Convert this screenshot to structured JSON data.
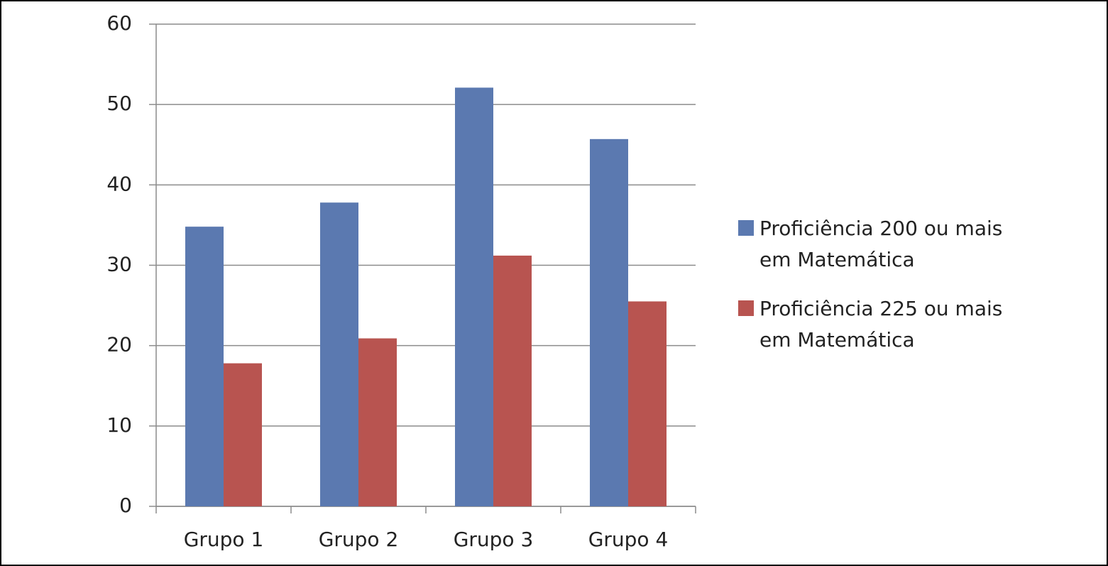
{
  "chart_data": {
    "type": "bar",
    "categories": [
      "Grupo 1",
      "Grupo 2",
      "Grupo 3",
      "Grupo 4"
    ],
    "series": [
      {
        "name": "Proficiência 200 ou mais em Matemática",
        "color": "#5b79b0",
        "values": [
          34.8,
          37.8,
          52.1,
          45.7
        ]
      },
      {
        "name": "Proficiência 225 ou mais em Matemática",
        "color": "#b85450",
        "values": [
          17.8,
          20.9,
          31.2,
          25.5
        ]
      }
    ],
    "ylim": [
      0,
      60
    ],
    "yticks": [
      0,
      10,
      20,
      30,
      40,
      50,
      60
    ],
    "grid": true,
    "legend": "right"
  }
}
